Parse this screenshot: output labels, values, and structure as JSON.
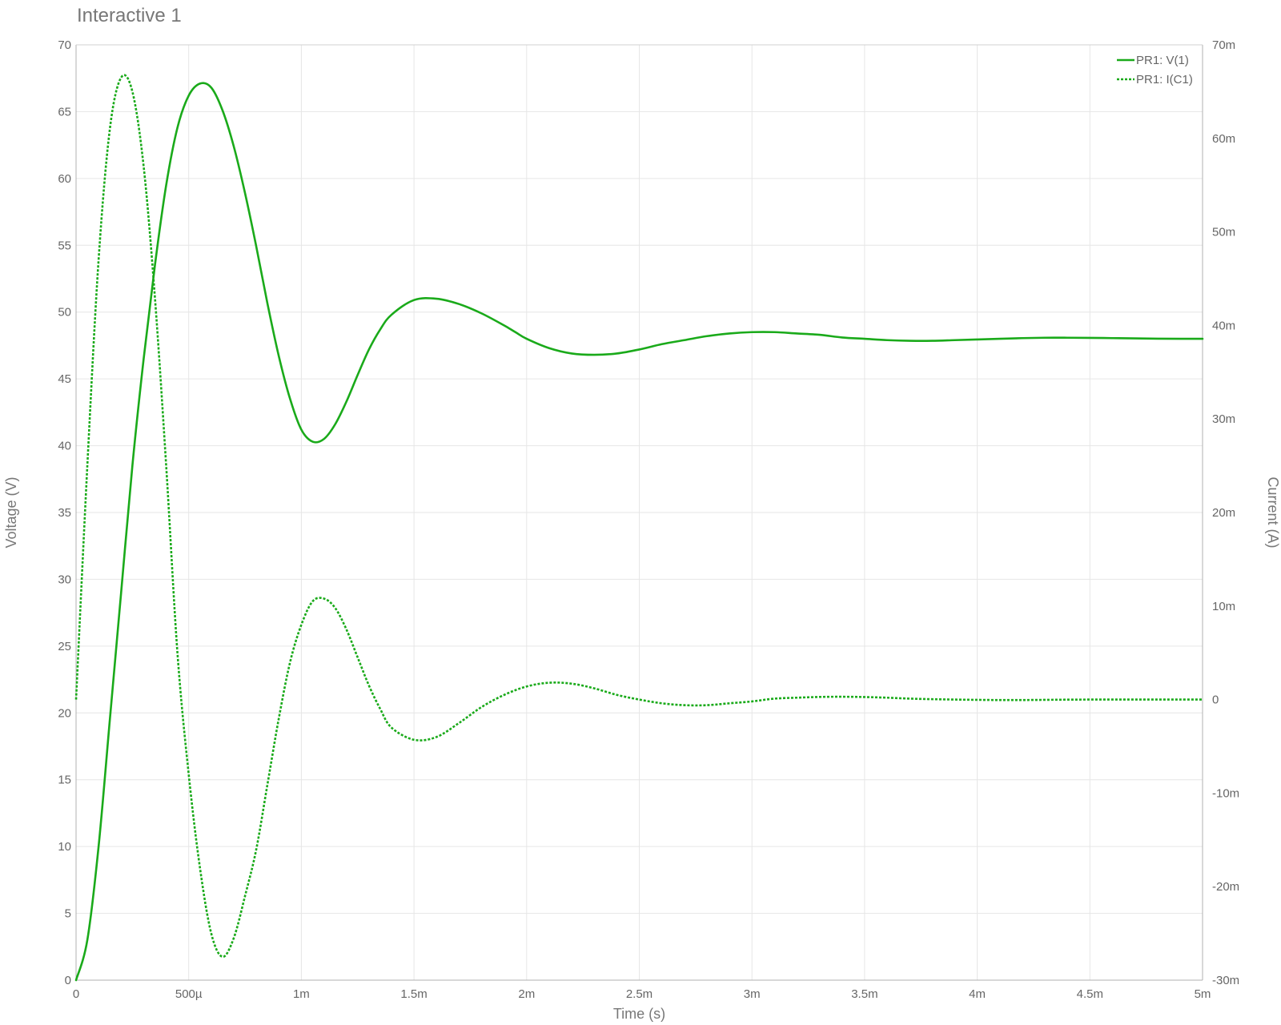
{
  "chart_data": {
    "type": "line",
    "title": "Interactive 1",
    "xlabel": "Time (s)",
    "ylabel": "Voltage (V)",
    "y2label": "Current (A)",
    "xlim": [
      0,
      0.005
    ],
    "ylim": [
      0,
      70
    ],
    "y2lim": [
      -0.03,
      0.07
    ],
    "grid": true,
    "legend_position": "top-right",
    "x_ticks": [
      {
        "value": 0,
        "label": "0"
      },
      {
        "value": 0.0005,
        "label": "500µ"
      },
      {
        "value": 0.001,
        "label": "1m"
      },
      {
        "value": 0.0015,
        "label": "1.5m"
      },
      {
        "value": 0.002,
        "label": "2m"
      },
      {
        "value": 0.0025,
        "label": "2.5m"
      },
      {
        "value": 0.003,
        "label": "3m"
      },
      {
        "value": 0.0035,
        "label": "3.5m"
      },
      {
        "value": 0.004,
        "label": "4m"
      },
      {
        "value": 0.0045,
        "label": "4.5m"
      },
      {
        "value": 0.005,
        "label": "5m"
      }
    ],
    "y_ticks": [
      {
        "value": 0,
        "label": "0"
      },
      {
        "value": 5,
        "label": "5"
      },
      {
        "value": 10,
        "label": "10"
      },
      {
        "value": 15,
        "label": "15"
      },
      {
        "value": 20,
        "label": "20"
      },
      {
        "value": 25,
        "label": "25"
      },
      {
        "value": 30,
        "label": "30"
      },
      {
        "value": 35,
        "label": "35"
      },
      {
        "value": 40,
        "label": "40"
      },
      {
        "value": 45,
        "label": "45"
      },
      {
        "value": 50,
        "label": "50"
      },
      {
        "value": 55,
        "label": "55"
      },
      {
        "value": 60,
        "label": "60"
      },
      {
        "value": 65,
        "label": "65"
      },
      {
        "value": 70,
        "label": "70"
      }
    ],
    "y2_ticks": [
      {
        "value": -0.03,
        "label": "-30m"
      },
      {
        "value": -0.02,
        "label": "-20m"
      },
      {
        "value": -0.01,
        "label": "-10m"
      },
      {
        "value": 0,
        "label": "0"
      },
      {
        "value": 0.01,
        "label": "10m"
      },
      {
        "value": 0.02,
        "label": "20m"
      },
      {
        "value": 0.03,
        "label": "30m"
      },
      {
        "value": 0.04,
        "label": "40m"
      },
      {
        "value": 0.05,
        "label": "50m"
      },
      {
        "value": 0.06,
        "label": "60m"
      },
      {
        "value": 0.07,
        "label": "70m"
      }
    ],
    "series": [
      {
        "name": "PR1: V(1)",
        "axis": "left",
        "line_style": "solid",
        "color": "#1aaa1a",
        "x": [
          0,
          5e-05,
          0.0001,
          0.00015,
          0.0002,
          0.00025,
          0.0003,
          0.00035,
          0.0004,
          0.00045,
          0.0005,
          0.00055,
          0.0006,
          0.00065,
          0.0007,
          0.00075,
          0.0008,
          0.00085,
          0.0009,
          0.00095,
          0.001,
          0.00105,
          0.0011,
          0.00115,
          0.0012,
          0.00125,
          0.0013,
          0.00135,
          0.0014,
          0.0015,
          0.0016,
          0.0017,
          0.0018,
          0.0019,
          0.00195,
          0.002,
          0.0021,
          0.0022,
          0.0023,
          0.0024,
          0.0025,
          0.0026,
          0.0027,
          0.0028,
          0.0029,
          0.003,
          0.0031,
          0.0032,
          0.0033,
          0.0034,
          0.0035,
          0.0036,
          0.0037,
          0.0038,
          0.0039,
          0.004,
          0.0041,
          0.0042,
          0.0043,
          0.0044,
          0.0045,
          0.0046,
          0.0047,
          0.0048,
          0.0049,
          0.005
        ],
        "values": [
          0,
          3,
          10,
          19.5,
          29,
          38.5,
          46.5,
          53.5,
          59.5,
          63.8,
          66.2,
          67.1,
          66.8,
          65.1,
          62.4,
          58.9,
          54.9,
          50.6,
          46.7,
          43.5,
          41.2,
          40.3,
          40.5,
          41.6,
          43.3,
          45.3,
          47.2,
          48.7,
          49.8,
          50.9,
          51.0,
          50.6,
          49.9,
          49.0,
          48.5,
          48.0,
          47.3,
          46.9,
          46.8,
          46.9,
          47.2,
          47.6,
          47.9,
          48.2,
          48.4,
          48.5,
          48.5,
          48.4,
          48.3,
          48.1,
          48.0,
          47.9,
          47.85,
          47.85,
          47.9,
          47.95,
          48.0,
          48.05,
          48.08,
          48.08,
          48.07,
          48.05,
          48.03,
          48.01,
          48.0,
          48.0
        ]
      },
      {
        "name": "PR1: I(C1)",
        "axis": "right",
        "line_style": "dotted",
        "color": "#1aaa1a",
        "x": [
          0,
          5e-05,
          0.0001,
          0.00015,
          0.0002,
          0.00025,
          0.0003,
          0.00035,
          0.0004,
          0.00045,
          0.0005,
          0.00055,
          0.0006,
          0.00065,
          0.0007,
          0.00075,
          0.0008,
          0.00085,
          0.0009,
          0.00095,
          0.001,
          0.00105,
          0.0011,
          0.00115,
          0.0012,
          0.00125,
          0.0013,
          0.00135,
          0.0014,
          0.0015,
          0.0016,
          0.0017,
          0.0018,
          0.0019,
          0.002,
          0.0021,
          0.0022,
          0.0023,
          0.0024,
          0.0025,
          0.0026,
          0.0027,
          0.0028,
          0.0029,
          0.003,
          0.0031,
          0.0032,
          0.0033,
          0.0034,
          0.0035,
          0.0036,
          0.0037,
          0.0038,
          0.0039,
          0.004,
          0.0041,
          0.0042,
          0.0043,
          0.0044,
          0.0045,
          0.0046,
          0.0047,
          0.0048,
          0.0049,
          0.005
        ],
        "values": [
          0,
          0.025,
          0.047,
          0.061,
          0.0665,
          0.065,
          0.057,
          0.043,
          0.025,
          0.005,
          -0.008,
          -0.018,
          -0.025,
          -0.0275,
          -0.0255,
          -0.021,
          -0.016,
          -0.009,
          -0.002,
          0.004,
          0.008,
          0.0105,
          0.0108,
          0.0098,
          0.0075,
          0.0045,
          0.0015,
          -0.001,
          -0.003,
          -0.0043,
          -0.004,
          -0.0025,
          -0.0008,
          0.0005,
          0.0014,
          0.0018,
          0.0017,
          0.0012,
          0.0005,
          0.0,
          -0.0004,
          -0.0006,
          -0.0006,
          -0.0004,
          -0.0002,
          0.0001,
          0.0002,
          0.00028,
          0.0003,
          0.00027,
          0.0002,
          0.0001,
          4e-05,
          0.0,
          -3e-05,
          -5e-05,
          -5e-05,
          -3e-05,
          -1e-05,
          0.0,
          0.0,
          0.0,
          0.0,
          0.0,
          0.0
        ]
      }
    ]
  }
}
